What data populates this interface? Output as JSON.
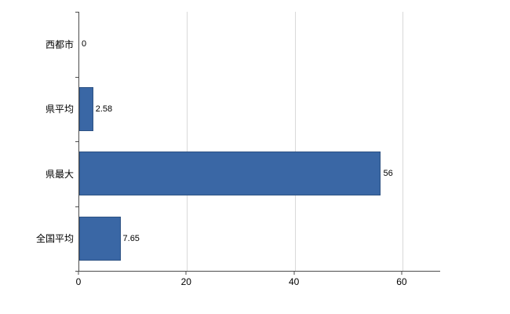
{
  "chart_data": {
    "type": "bar",
    "orientation": "horizontal",
    "title": "",
    "xlabel": "",
    "ylabel": "",
    "categories": [
      "西都市",
      "県平均",
      "県最大",
      "全国平均"
    ],
    "values": [
      0,
      2.58,
      56,
      7.65
    ],
    "value_labels": [
      "0",
      "2.58",
      "56",
      "7.65"
    ],
    "xlim": [
      0,
      67
    ],
    "xticks": [
      0,
      20,
      40,
      60
    ],
    "xtick_labels": [
      "0",
      "20",
      "40",
      "60"
    ],
    "grid": true,
    "legend": "none",
    "colors": {
      "bar_fill": "#3a67a5",
      "bar_border": "#2d5283",
      "gridline": "#d9d9d9",
      "axis": "#4d4d4d",
      "text": "#000000",
      "background": "#ffffff"
    }
  }
}
